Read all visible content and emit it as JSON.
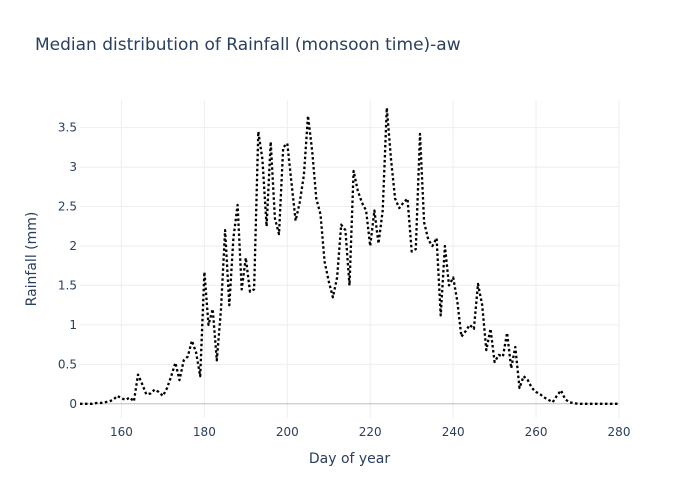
{
  "chart_data": {
    "type": "line",
    "title": "Median distribution of Rainfall (monsoon time)-aw",
    "xlabel": "Day of year",
    "ylabel": "Rainfall (mm)",
    "xlim": [
      150,
      280
    ],
    "ylim": [
      -0.18,
      3.85
    ],
    "x_ticks": [
      160,
      180,
      200,
      220,
      240,
      260,
      280
    ],
    "y_ticks": [
      0,
      0.5,
      1,
      1.5,
      2,
      2.5,
      3,
      3.5
    ],
    "grid": true,
    "line_style": "dotted",
    "line_color": "#000000",
    "series": [
      {
        "x": [
          150,
          151,
          152,
          153,
          154,
          155,
          156,
          157,
          158,
          159,
          160,
          161,
          162,
          163,
          164,
          165,
          166,
          167,
          168,
          169,
          170,
          171,
          172,
          173,
          174,
          175,
          176,
          177,
          178,
          179,
          180,
          181,
          182,
          183,
          184,
          185,
          186,
          187,
          188,
          189,
          190,
          191,
          192,
          193,
          194,
          195,
          196,
          197,
          198,
          199,
          200,
          201,
          202,
          203,
          204,
          205,
          206,
          207,
          208,
          209,
          210,
          211,
          212,
          213,
          214,
          215,
          216,
          217,
          218,
          219,
          220,
          221,
          222,
          223,
          224,
          225,
          226,
          227,
          228,
          229,
          230,
          231,
          232,
          233,
          234,
          235,
          236,
          237,
          238,
          239,
          240,
          241,
          242,
          243,
          244,
          245,
          246,
          247,
          248,
          249,
          250,
          251,
          252,
          253,
          254,
          255,
          256,
          257,
          258,
          259,
          260,
          261,
          262,
          263,
          264,
          265,
          266,
          267,
          268,
          269,
          270,
          271,
          272,
          273,
          274,
          275,
          276,
          277,
          278,
          279,
          280
        ],
        "values": [
          0,
          0,
          0,
          0,
          0.01,
          0.01,
          0.02,
          0.03,
          0.05,
          0.1,
          0.07,
          0.05,
          0.08,
          0.03,
          0.37,
          0.25,
          0.12,
          0.13,
          0.18,
          0.15,
          0.1,
          0.2,
          0.35,
          0.52,
          0.3,
          0.55,
          0.6,
          0.8,
          0.65,
          0.35,
          1.67,
          1.0,
          1.2,
          0.55,
          1.2,
          2.2,
          1.25,
          2.1,
          2.52,
          1.45,
          1.85,
          1.42,
          1.45,
          3.45,
          3.1,
          2.25,
          3.32,
          2.35,
          2.15,
          3.25,
          3.3,
          2.8,
          2.32,
          2.55,
          2.9,
          3.65,
          3.2,
          2.6,
          2.4,
          1.8,
          1.55,
          1.35,
          1.6,
          2.27,
          2.2,
          1.5,
          2.95,
          2.7,
          2.55,
          2.45,
          2.0,
          2.45,
          2.03,
          2.45,
          3.75,
          3.1,
          2.6,
          2.48,
          2.55,
          2.6,
          1.93,
          1.96,
          3.42,
          2.3,
          2.08,
          2.0,
          2.1,
          1.12,
          2.0,
          1.5,
          1.6,
          1.3,
          0.85,
          0.92,
          1.0,
          0.95,
          1.52,
          1.25,
          0.68,
          0.95,
          0.53,
          0.62,
          0.6,
          0.9,
          0.45,
          0.72,
          0.2,
          0.35,
          0.3,
          0.2,
          0.15,
          0.12,
          0.08,
          0.05,
          0.02,
          0.1,
          0.17,
          0.06,
          0.02,
          0.01,
          0,
          0,
          0,
          0,
          0,
          0,
          0,
          0,
          0,
          0,
          0
        ]
      }
    ]
  }
}
